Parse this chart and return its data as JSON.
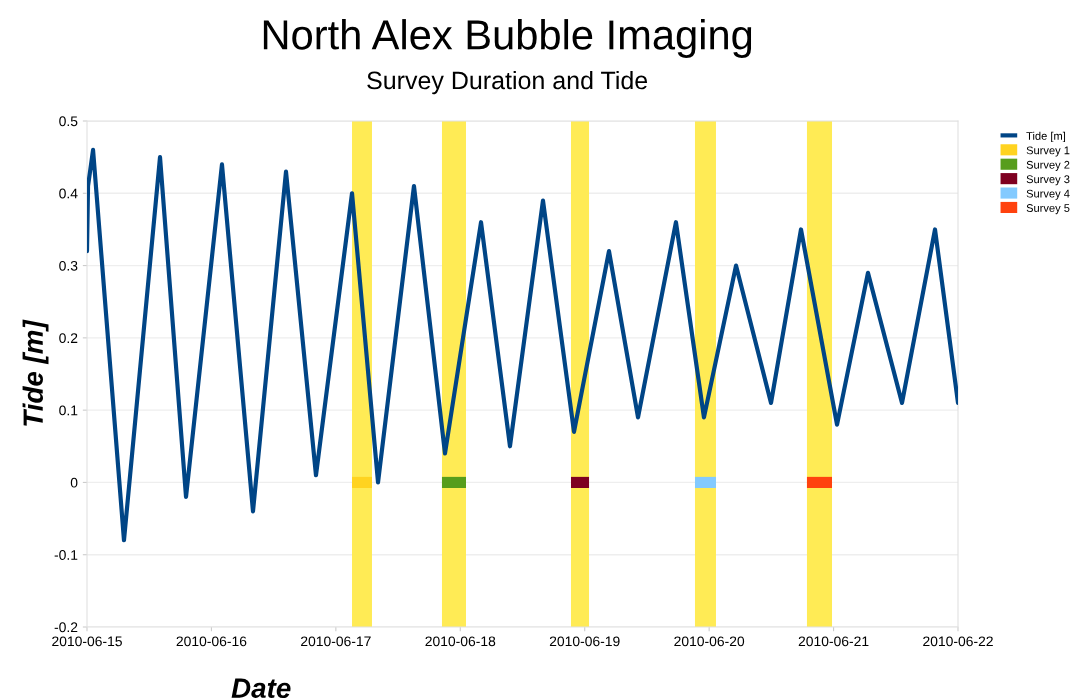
{
  "chart_data": {
    "type": "line",
    "title": "North Alex Bubble Imaging",
    "subtitle": "Survey Duration and Tide",
    "xlabel": "Date",
    "ylabel": "Tide [m]",
    "series": [
      {
        "name": "Tide [m]",
        "color": "#004586",
        "x": [
          "2010-06-15T00:00",
          "2010-06-15T00:12",
          "2010-06-15T01:10",
          "2010-06-15T07:08",
          "2010-06-15T14:05",
          "2010-06-15T19:06",
          "2010-06-16T02:02",
          "2010-06-16T08:01",
          "2010-06-16T14:23",
          "2010-06-16T20:10",
          "2010-06-17T03:07",
          "2010-06-17T08:08",
          "2010-06-17T15:04",
          "2010-06-17T21:03",
          "2010-06-18T04:00",
          "2010-06-18T09:35",
          "2010-06-18T15:57",
          "2010-06-18T21:56",
          "2010-06-19T04:41",
          "2010-06-19T10:17",
          "2010-06-19T17:36",
          "2010-06-19T23:00",
          "2010-06-20T05:11",
          "2010-06-20T11:56",
          "2010-06-20T17:43",
          "2010-06-21T00:40",
          "2010-06-21T06:38",
          "2010-06-21T13:12",
          "2010-06-21T19:34",
          "2010-06-22T00:00"
        ],
        "values": [
          0.32,
          0.41,
          0.46,
          -0.08,
          0.45,
          -0.02,
          0.44,
          -0.04,
          0.43,
          0.01,
          0.4,
          0.0,
          0.41,
          0.04,
          0.36,
          0.05,
          0.39,
          0.07,
          0.32,
          0.09,
          0.36,
          0.09,
          0.3,
          0.11,
          0.35,
          0.08,
          0.29,
          0.11,
          0.35,
          0.11
        ]
      },
      {
        "name": "Survey 1",
        "color": "#ffd320",
        "x": [
          "2010-06-17T03:07",
          "2010-06-17T06:58"
        ],
        "values": [
          0,
          0
        ]
      },
      {
        "name": "Survey 2",
        "color": "#579d1c",
        "x": [
          "2010-06-17T20:28",
          "2010-06-18T01:06"
        ],
        "values": [
          0,
          0
        ]
      },
      {
        "name": "Survey 3",
        "color": "#7e0021",
        "x": [
          "2010-06-18T21:21",
          "2010-06-19T00:50"
        ],
        "values": [
          0,
          0
        ]
      },
      {
        "name": "Survey 4",
        "color": "#83caff",
        "x": [
          "2010-06-19T21:16",
          "2010-06-20T01:19"
        ],
        "values": [
          0,
          0
        ]
      },
      {
        "name": "Survey 5",
        "color": "#ff420e",
        "x": [
          "2010-06-20T18:52",
          "2010-06-20T23:42"
        ],
        "values": [
          0,
          0
        ]
      }
    ],
    "bands": [
      {
        "axis": "x",
        "from": "2010-06-17T03:07",
        "to": "2010-06-17T06:58",
        "color": "#ffeb55"
      },
      {
        "axis": "x",
        "from": "2010-06-17T20:28",
        "to": "2010-06-18T01:06",
        "color": "#ffeb55"
      },
      {
        "axis": "x",
        "from": "2010-06-18T21:21",
        "to": "2010-06-19T00:50",
        "color": "#ffeb55"
      },
      {
        "axis": "x",
        "from": "2010-06-19T21:16",
        "to": "2010-06-20T01:19",
        "color": "#ffeb55"
      },
      {
        "axis": "x",
        "from": "2010-06-20T18:52",
        "to": "2010-06-20T23:42",
        "color": "#ffeb55"
      }
    ],
    "xlim": [
      "2010-06-15",
      "2010-06-22"
    ],
    "xticks": [
      {
        "value": "2010-06-15",
        "label": "2010-06-15"
      },
      {
        "value": "2010-06-16",
        "label": "2010-06-16"
      },
      {
        "value": "2010-06-17",
        "label": "2010-06-17"
      },
      {
        "value": "2010-06-18",
        "label": "2010-06-18"
      },
      {
        "value": "2010-06-19",
        "label": "2010-06-19"
      },
      {
        "value": "2010-06-20",
        "label": "2010-06-20"
      },
      {
        "value": "2010-06-21",
        "label": "2010-06-21"
      },
      {
        "value": "2010-06-22",
        "label": "2010-06-22"
      }
    ],
    "ylim": [
      -0.2,
      0.5
    ],
    "yticks": [
      -0.2,
      -0.1,
      0,
      0.1,
      0.2,
      0.3,
      0.4,
      0.5
    ],
    "grid": "y",
    "legend": "top right",
    "marker": "none",
    "line_style": "solid"
  }
}
